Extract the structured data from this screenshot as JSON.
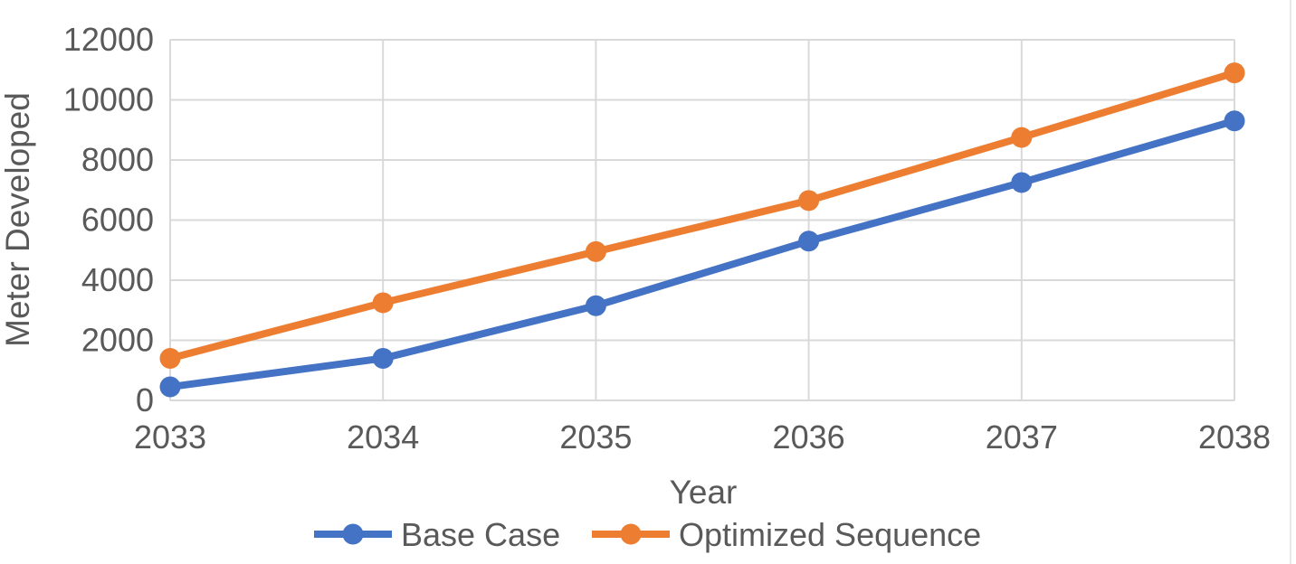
{
  "chart_data": {
    "type": "line",
    "title": "",
    "x": [
      "2033",
      "2034",
      "2035",
      "2036",
      "2037",
      "2038"
    ],
    "series": [
      {
        "name": "Base Case",
        "color": "#4472C4",
        "values": [
          450,
          1400,
          3150,
          5300,
          7250,
          9300
        ]
      },
      {
        "name": "Optimized Sequence",
        "color": "#ED7D31",
        "values": [
          1400,
          3250,
          4950,
          6650,
          8750,
          10900
        ]
      }
    ],
    "xlabel": "Year",
    "ylabel": "Meter Developed",
    "ylim": [
      0,
      12000
    ],
    "ytick_step": 2000,
    "yticks": [
      "0",
      "2000",
      "4000",
      "6000",
      "8000",
      "10000",
      "12000"
    ],
    "grid": true,
    "legend_position": "bottom",
    "marker": "circle",
    "text_color": "#595959",
    "gridline_color": "#D9D9D9",
    "edge_line_color": "#E8E8E8",
    "background": "#FFFFFF"
  }
}
